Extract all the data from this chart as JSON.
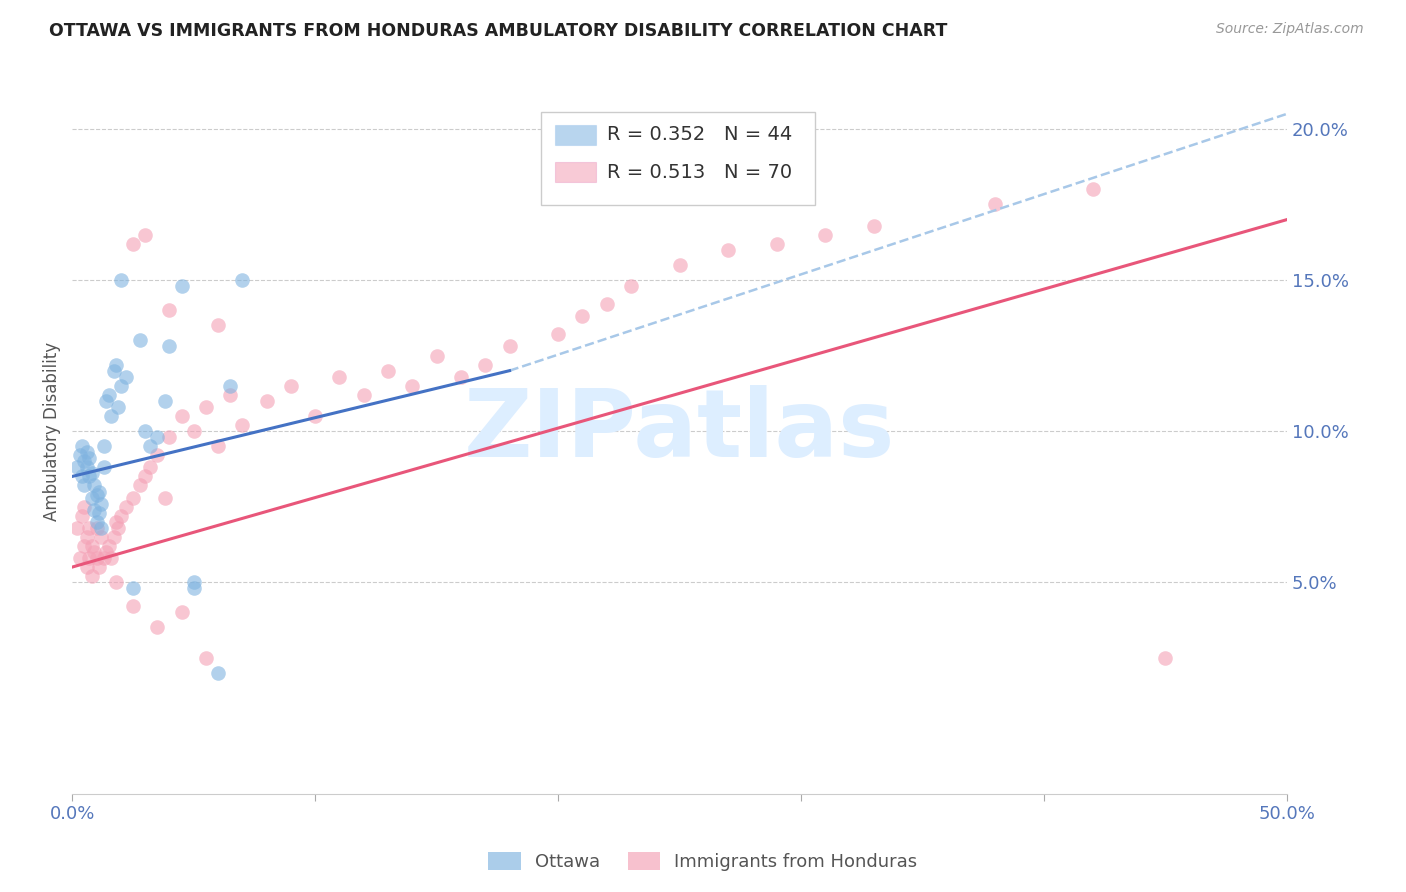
{
  "title": "OTTAWA VS IMMIGRANTS FROM HONDURAS AMBULATORY DISABILITY CORRELATION CHART",
  "source": "Source: ZipAtlas.com",
  "ylabel": "Ambulatory Disability",
  "xlim": [
    0.0,
    0.5
  ],
  "ylim": [
    -0.02,
    0.22
  ],
  "yticks": [
    0.05,
    0.1,
    0.15,
    0.2
  ],
  "ytick_labels": [
    "5.0%",
    "10.0%",
    "15.0%",
    "20.0%"
  ],
  "ottawa_R": 0.352,
  "ottawa_N": 44,
  "honduras_R": 0.513,
  "honduras_N": 70,
  "ottawa_color": "#7fb3e0",
  "honduras_color": "#f4a0b5",
  "trend_line_color_ottawa": "#4472c4",
  "trend_line_color_honduras": "#e8567a",
  "dashed_line_color": "#a8c8e8",
  "axis_color": "#5577bb",
  "grid_color": "#cccccc",
  "title_color": "#222222",
  "watermark_color": "#ddeeff",
  "ottawa_x": [
    0.002,
    0.003,
    0.004,
    0.004,
    0.005,
    0.005,
    0.006,
    0.006,
    0.007,
    0.007,
    0.008,
    0.008,
    0.009,
    0.009,
    0.01,
    0.01,
    0.011,
    0.011,
    0.012,
    0.012,
    0.013,
    0.013,
    0.014,
    0.015,
    0.016,
    0.017,
    0.018,
    0.019,
    0.02,
    0.022,
    0.025,
    0.028,
    0.03,
    0.032,
    0.035,
    0.038,
    0.04,
    0.045,
    0.05,
    0.06,
    0.065,
    0.07,
    0.05,
    0.02
  ],
  "ottawa_y": [
    0.088,
    0.092,
    0.085,
    0.095,
    0.09,
    0.082,
    0.088,
    0.093,
    0.085,
    0.091,
    0.078,
    0.086,
    0.074,
    0.082,
    0.07,
    0.079,
    0.073,
    0.08,
    0.068,
    0.076,
    0.088,
    0.095,
    0.11,
    0.112,
    0.105,
    0.12,
    0.122,
    0.108,
    0.115,
    0.118,
    0.048,
    0.13,
    0.1,
    0.095,
    0.098,
    0.11,
    0.128,
    0.148,
    0.05,
    0.02,
    0.115,
    0.15,
    0.048,
    0.15
  ],
  "honduras_x": [
    0.002,
    0.003,
    0.004,
    0.005,
    0.005,
    0.006,
    0.006,
    0.007,
    0.007,
    0.008,
    0.008,
    0.009,
    0.01,
    0.01,
    0.011,
    0.012,
    0.013,
    0.014,
    0.015,
    0.016,
    0.017,
    0.018,
    0.019,
    0.02,
    0.022,
    0.025,
    0.028,
    0.03,
    0.032,
    0.035,
    0.038,
    0.04,
    0.045,
    0.05,
    0.055,
    0.06,
    0.065,
    0.07,
    0.08,
    0.09,
    0.1,
    0.11,
    0.12,
    0.13,
    0.14,
    0.15,
    0.16,
    0.17,
    0.18,
    0.2,
    0.21,
    0.22,
    0.23,
    0.25,
    0.27,
    0.29,
    0.31,
    0.33,
    0.38,
    0.42,
    0.45,
    0.018,
    0.025,
    0.035,
    0.045,
    0.055,
    0.025,
    0.03,
    0.04,
    0.06
  ],
  "honduras_y": [
    0.068,
    0.058,
    0.072,
    0.062,
    0.075,
    0.055,
    0.065,
    0.058,
    0.068,
    0.052,
    0.062,
    0.06,
    0.058,
    0.068,
    0.055,
    0.065,
    0.058,
    0.06,
    0.062,
    0.058,
    0.065,
    0.07,
    0.068,
    0.072,
    0.075,
    0.078,
    0.082,
    0.085,
    0.088,
    0.092,
    0.078,
    0.098,
    0.105,
    0.1,
    0.108,
    0.095,
    0.112,
    0.102,
    0.11,
    0.115,
    0.105,
    0.118,
    0.112,
    0.12,
    0.115,
    0.125,
    0.118,
    0.122,
    0.128,
    0.132,
    0.138,
    0.142,
    0.148,
    0.155,
    0.16,
    0.162,
    0.165,
    0.168,
    0.175,
    0.18,
    0.025,
    0.05,
    0.042,
    0.035,
    0.04,
    0.025,
    0.162,
    0.165,
    0.14,
    0.135
  ],
  "ottawa_trend": [
    0.085,
    0.12
  ],
  "ottawa_trend_x": [
    0.0,
    0.18
  ],
  "honduras_trend": [
    0.055,
    0.17
  ],
  "honduras_trend_x": [
    0.0,
    0.5
  ],
  "dashed_trend_x": [
    0.18,
    0.5
  ],
  "dashed_trend_y": [
    0.12,
    0.205
  ]
}
